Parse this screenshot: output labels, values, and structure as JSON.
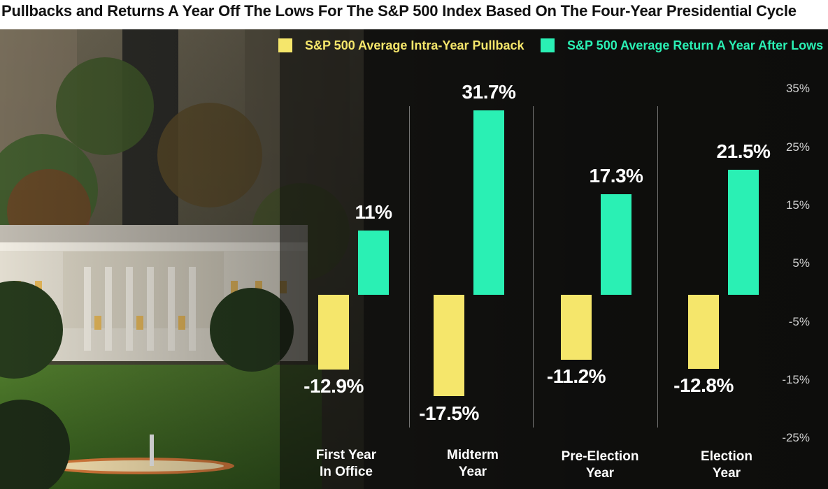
{
  "chart_data": {
    "type": "bar",
    "title": "Pullbacks and Returns A Year Off The Lows For The S&P 500 Index Based On The Four-Year Presidential Cycle",
    "categories": [
      [
        "First Year",
        "In Office"
      ],
      [
        "Midterm",
        "Year"
      ],
      [
        "Pre-Election",
        "Year"
      ],
      [
        "Election",
        "Year"
      ]
    ],
    "series": [
      {
        "name": "S&P 500 Average Intra-Year Pullback",
        "values": [
          -12.9,
          -17.5,
          -11.2,
          -12.8
        ],
        "labels": [
          "-12.9%",
          "-17.5%",
          "-11.2%",
          "-12.8%"
        ],
        "color": "#f5e66b"
      },
      {
        "name": "S&P 500 Average Return A Year After Lows",
        "values": [
          11,
          31.7,
          17.3,
          21.5
        ],
        "labels": [
          "11%",
          "31.7%",
          "17.3%",
          "21.5%"
        ],
        "color": "#2af0b4"
      }
    ],
    "ylim": [
      -25,
      35
    ],
    "yticks": [
      "35%",
      "25%",
      "15%",
      "5%",
      "-5%",
      "-15%",
      "-25%"
    ],
    "ytick_values": [
      35,
      25,
      15,
      5,
      -5,
      -15,
      -25
    ],
    "legend": "top-right"
  }
}
